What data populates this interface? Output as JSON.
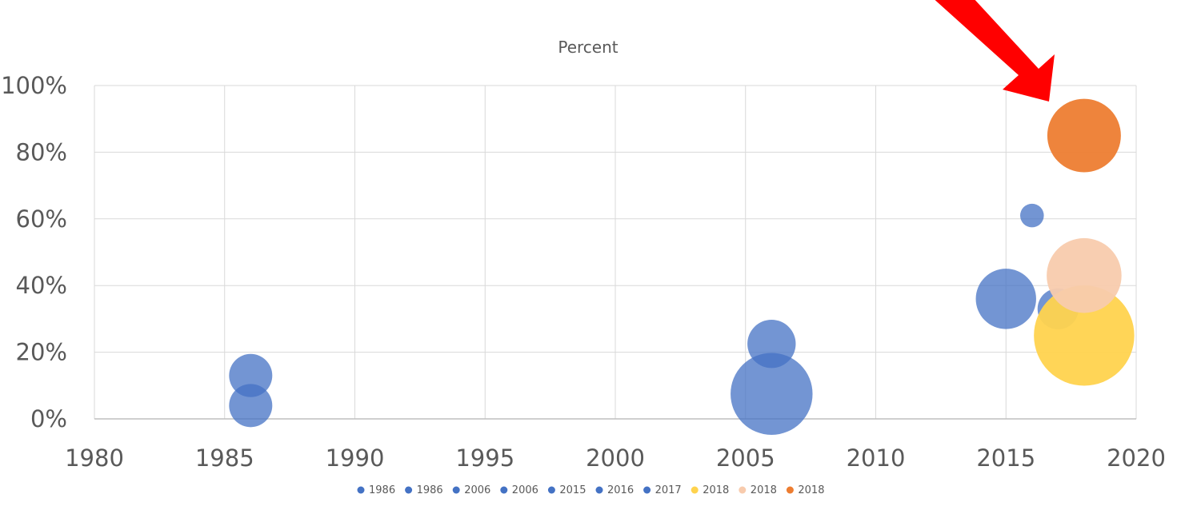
{
  "chart_data": {
    "type": "bubble",
    "title": "Percent",
    "xlabel": "",
    "ylabel": "",
    "xlim": [
      1980,
      2020
    ],
    "ylim": [
      0,
      1
    ],
    "x_ticks": [
      1980,
      1985,
      1990,
      1995,
      2000,
      2005,
      2010,
      2015,
      2020
    ],
    "y_ticks": [
      0,
      0.2,
      0.4,
      0.6,
      0.8,
      1.0
    ],
    "y_tick_labels": [
      "0%",
      "20%",
      "40%",
      "60%",
      "80%",
      "100%"
    ],
    "grid": true,
    "legend_position": "bottom",
    "colors": {
      "blue": "#4472C4",
      "yellow": "#FFD34E",
      "peach": "#F8CBAD",
      "orange": "#ED7D31",
      "arrow": "#FF0000"
    },
    "series": [
      {
        "name": "1986",
        "x": 1986,
        "y": 0.13,
        "size": 1.0,
        "color": "#4472C4"
      },
      {
        "name": "1986",
        "x": 1986,
        "y": 0.04,
        "size": 1.0,
        "color": "#4472C4"
      },
      {
        "name": "2006",
        "x": 2006,
        "y": 0.225,
        "size": 1.25,
        "color": "#4472C4"
      },
      {
        "name": "2006",
        "x": 2006,
        "y": 0.075,
        "size": 3.6,
        "color": "#4472C4"
      },
      {
        "name": "2015",
        "x": 2015,
        "y": 0.36,
        "size": 1.95,
        "color": "#4472C4"
      },
      {
        "name": "2016",
        "x": 2016,
        "y": 0.61,
        "size": 0.3,
        "color": "#4472C4"
      },
      {
        "name": "2017",
        "x": 2017,
        "y": 0.33,
        "size": 0.9,
        "color": "#4472C4"
      },
      {
        "name": "2018",
        "x": 2018,
        "y": 0.25,
        "size": 5.4,
        "color": "#FFD34E"
      },
      {
        "name": "2018",
        "x": 2018,
        "y": 0.43,
        "size": 3.0,
        "color": "#F8CBAD"
      },
      {
        "name": "2018",
        "x": 2018,
        "y": 0.85,
        "size": 2.9,
        "color": "#ED7D31"
      }
    ]
  }
}
